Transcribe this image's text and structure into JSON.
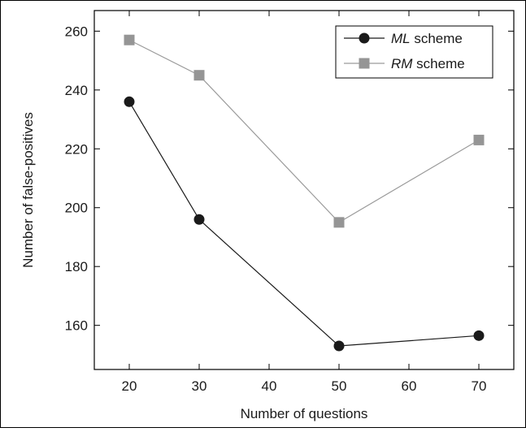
{
  "chart_data": {
    "type": "line",
    "title": "",
    "xlabel": "Number of questions",
    "ylabel": "Number of false-positives",
    "xlim": [
      15,
      75
    ],
    "ylim": [
      145,
      267
    ],
    "xticks": [
      20,
      30,
      40,
      50,
      60,
      70
    ],
    "yticks": [
      160,
      180,
      200,
      220,
      240,
      260
    ],
    "x": [
      20,
      30,
      50,
      70
    ],
    "grid": false,
    "legend_position": "top-right",
    "series": [
      {
        "name_prefix": "ML",
        "name_suffix": " scheme",
        "values": [
          236,
          196,
          153,
          156.5
        ],
        "marker": "circle",
        "color": "#1a1a1a",
        "marker_color": "#1a1a1a"
      },
      {
        "name_prefix": "RM",
        "name_suffix": " scheme",
        "values": [
          257,
          245,
          195,
          223
        ],
        "marker": "square",
        "color": "#9a9a9a",
        "marker_color": "#959595"
      }
    ]
  }
}
